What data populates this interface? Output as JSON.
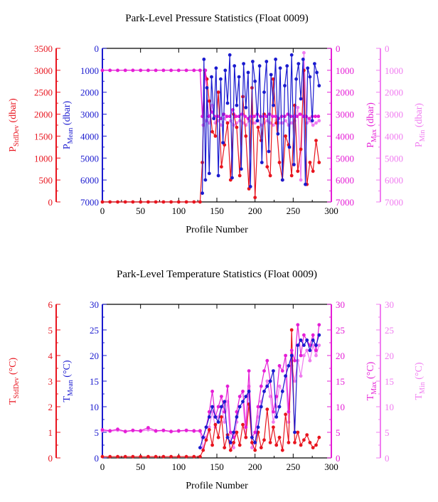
{
  "footer_code": "",
  "colors": {
    "std": "#e8141e",
    "mean": "#1a1acf",
    "max": "#e51ed6",
    "min": "#f07cf0",
    "axis": "#000000"
  },
  "chart_data": [
    {
      "type": "line",
      "title": "Park-Level Pressure Statistics (Float 0009)",
      "xlabel": "Profile Number",
      "xlim": [
        0,
        300
      ],
      "xticks": [
        "0",
        "50",
        "100",
        "150",
        "200",
        "250",
        "300"
      ],
      "axes": {
        "std": {
          "label_main": "P",
          "label_sub": "StdDev",
          "label_unit": " (dbar)",
          "lim": [
            0,
            3500
          ],
          "reversed": false,
          "ticks": [
            "0",
            "500",
            "1000",
            "1500",
            "2000",
            "2500",
            "3000",
            "3500"
          ]
        },
        "mean": {
          "label_main": "P",
          "label_sub": "Mean",
          "label_unit": " (dbar)",
          "lim": [
            0,
            7000
          ],
          "reversed": true,
          "ticks": [
            "0",
            "1000",
            "2000",
            "3000",
            "4000",
            "5000",
            "6000",
            "7000"
          ]
        },
        "max": {
          "label_main": "P",
          "label_sub": "Max",
          "label_unit": " (dbar)",
          "lim": [
            0,
            7000
          ],
          "reversed": true,
          "ticks": [
            "0",
            "1000",
            "2000",
            "3000",
            "4000",
            "5000",
            "6000",
            "7000"
          ]
        },
        "min": {
          "label_main": "P",
          "label_sub": "Min",
          "label_unit": " (dbar)",
          "lim": [
            0,
            7000
          ],
          "reversed": true,
          "ticks": [
            "0",
            "1000",
            "2000",
            "3000",
            "4000",
            "5000",
            "6000",
            "7000"
          ]
        }
      },
      "series": [
        {
          "axis": "std",
          "color_key": "std",
          "x": [
            0,
            10,
            20,
            30,
            40,
            50,
            60,
            70,
            80,
            90,
            100,
            110,
            120,
            128,
            131,
            134,
            137,
            140,
            144,
            148,
            152,
            156,
            160,
            164,
            168,
            172,
            176,
            180,
            184,
            188,
            192,
            196,
            200,
            204,
            208,
            212,
            216,
            220,
            224,
            228,
            232,
            236,
            240,
            244,
            248,
            252,
            256,
            260,
            264,
            268,
            272,
            276,
            280,
            284
          ],
          "y": [
            0,
            0,
            0,
            0,
            0,
            0,
            0,
            0,
            0,
            0,
            0,
            0,
            0,
            0,
            900,
            3000,
            2800,
            2300,
            1600,
            1500,
            2500,
            800,
            1300,
            1800,
            500,
            2000,
            1700,
            600,
            2400,
            1500,
            300,
            2600,
            100,
            1700,
            1400,
            2000,
            800,
            600,
            2800,
            1800,
            900,
            500,
            1500,
            1300,
            600,
            2200,
            700,
            1200,
            3000,
            400,
            900,
            700,
            1400,
            900
          ]
        },
        {
          "axis": "mean",
          "color_key": "mean",
          "x": [
            131,
            133,
            135,
            137,
            140,
            143,
            146,
            149,
            152,
            155,
            158,
            161,
            164,
            167,
            170,
            173,
            176,
            179,
            182,
            185,
            188,
            191,
            194,
            197,
            200,
            203,
            206,
            209,
            212,
            215,
            218,
            221,
            224,
            227,
            230,
            233,
            236,
            239,
            242,
            245,
            248,
            251,
            254,
            257,
            260,
            263,
            266,
            269,
            272,
            275,
            278,
            281,
            284
          ],
          "y": [
            6600,
            500,
            6000,
            1800,
            5700,
            1300,
            3200,
            900,
            5800,
            1400,
            4300,
            1000,
            2500,
            300,
            5900,
            800,
            2600,
            1300,
            5500,
            700,
            2700,
            1100,
            6300,
            600,
            1500,
            3300,
            800,
            5200,
            2000,
            600,
            4700,
            1200,
            2600,
            500,
            3900,
            900,
            6000,
            1700,
            800,
            4500,
            300,
            5300,
            1400,
            700,
            2300,
            500,
            6200,
            900,
            1300,
            3300,
            700,
            1100,
            1700
          ]
        },
        {
          "axis": "max",
          "color_key": "max",
          "x": [
            0,
            10,
            20,
            30,
            40,
            50,
            60,
            70,
            80,
            90,
            100,
            110,
            120,
            128,
            131,
            135,
            139,
            143,
            147,
            151,
            155,
            159,
            163,
            167,
            171,
            175,
            179,
            183,
            187,
            191,
            195,
            199,
            203,
            207,
            211,
            215,
            219,
            223,
            227,
            231,
            235,
            239,
            243,
            247,
            251,
            255,
            259,
            263,
            267,
            271,
            275,
            279,
            283
          ],
          "y": [
            1000,
            1000,
            1000,
            1000,
            1000,
            1000,
            1000,
            1000,
            1000,
            1000,
            1000,
            1000,
            1000,
            1000,
            3100,
            1000,
            3100,
            2900,
            3100,
            3100,
            3200,
            3000,
            3100,
            3100,
            2800,
            3100,
            3100,
            3000,
            3100,
            3200,
            3100,
            3100,
            3000,
            3100,
            3100,
            3100,
            3000,
            3100,
            3100,
            3200,
            3100,
            3100,
            3000,
            3100,
            3100,
            3100,
            3000,
            3100,
            3100,
            3200,
            3100,
            3100,
            3100
          ]
        },
        {
          "axis": "min",
          "color_key": "min",
          "x": [
            0,
            10,
            20,
            30,
            40,
            50,
            60,
            70,
            80,
            90,
            100,
            110,
            120,
            128,
            132,
            136,
            140,
            144,
            148,
            152,
            156,
            160,
            164,
            168,
            172,
            176,
            180,
            184,
            188,
            192,
            196,
            200,
            204,
            208,
            212,
            216,
            220,
            224,
            228,
            232,
            236,
            240,
            244,
            248,
            252,
            256,
            260,
            264,
            268,
            272,
            276,
            280,
            284
          ],
          "y": [
            1000,
            1000,
            1000,
            1000,
            1000,
            1000,
            1000,
            1000,
            1000,
            1000,
            1000,
            1000,
            1000,
            1000,
            3500,
            3300,
            3400,
            2600,
            3400,
            3300,
            3500,
            3200,
            3400,
            3300,
            3500,
            3400,
            3300,
            3400,
            3500,
            3300,
            3400,
            3400,
            3300,
            3500,
            3400,
            3300,
            3400,
            3500,
            3300,
            3400,
            3400,
            3300,
            3500,
            3400,
            3300,
            2700,
            6000,
            200,
            3400,
            3300,
            3500,
            3400,
            3300
          ]
        }
      ]
    },
    {
      "type": "line",
      "title": "Park-Level Temperature Statistics (Float 0009)",
      "xlabel": "Profile Number",
      "xlim": [
        0,
        300
      ],
      "xticks": [
        "0",
        "50",
        "100",
        "150",
        "200",
        "250",
        "300"
      ],
      "axes": {
        "std": {
          "label_main": "T",
          "label_sub": "StdDev",
          "label_unit": " (°C)",
          "lim": [
            0,
            6
          ],
          "reversed": false,
          "ticks": [
            "0",
            "1",
            "2",
            "3",
            "4",
            "5",
            "6"
          ]
        },
        "mean": {
          "label_main": "T",
          "label_sub": "Mean",
          "label_unit": " (°C)",
          "lim": [
            0,
            30
          ],
          "reversed": false,
          "ticks": [
            "0",
            "5",
            "10",
            "15",
            "20",
            "25",
            "30"
          ]
        },
        "max": {
          "label_main": "T",
          "label_sub": "Max",
          "label_unit": " (°C)",
          "lim": [
            0,
            30
          ],
          "reversed": false,
          "ticks": [
            "0",
            "5",
            "10",
            "15",
            "20",
            "25",
            "30"
          ]
        },
        "min": {
          "label_main": "T",
          "label_sub": "Min",
          "label_unit": " (°C)",
          "lim": [
            0,
            30
          ],
          "reversed": false,
          "ticks": [
            "0",
            "5",
            "10",
            "15",
            "20",
            "25",
            "30"
          ]
        }
      },
      "series": [
        {
          "axis": "std",
          "color_key": "std",
          "x": [
            0,
            10,
            20,
            30,
            40,
            50,
            60,
            70,
            80,
            90,
            100,
            110,
            120,
            128,
            132,
            136,
            140,
            144,
            148,
            152,
            156,
            160,
            164,
            168,
            172,
            176,
            180,
            184,
            188,
            192,
            196,
            200,
            204,
            208,
            212,
            216,
            220,
            224,
            228,
            232,
            236,
            240,
            244,
            248,
            252,
            256,
            260,
            264,
            268,
            272,
            276,
            280,
            284
          ],
          "y": [
            0.05,
            0.05,
            0.05,
            0.05,
            0.05,
            0.05,
            0.05,
            0.05,
            0.05,
            0.05,
            0.05,
            0.05,
            0.05,
            0.05,
            0.3,
            0.7,
            1.1,
            0.5,
            1.3,
            0.8,
            1.6,
            0.4,
            0.9,
            0.3,
            0.6,
            1.0,
            0.5,
            1.3,
            0.8,
            2.1,
            0.6,
            0.3,
            1.0,
            0.4,
            0.7,
            1.9,
            0.6,
            1.2,
            0.5,
            0.8,
            0.3,
            1.7,
            0.6,
            5.0,
            0.6,
            1.0,
            0.5,
            0.7,
            0.9,
            0.6,
            0.4,
            0.5,
            0.8
          ]
        },
        {
          "axis": "mean",
          "color_key": "mean",
          "x": [
            128,
            132,
            136,
            140,
            144,
            148,
            152,
            156,
            160,
            164,
            168,
            172,
            176,
            180,
            184,
            188,
            192,
            196,
            200,
            204,
            208,
            212,
            216,
            220,
            224,
            228,
            232,
            236,
            240,
            244,
            248,
            252,
            256,
            260,
            264,
            268,
            272,
            276,
            280,
            284
          ],
          "y": [
            2,
            4,
            6,
            8,
            10,
            8,
            7,
            10,
            11,
            4,
            3,
            5,
            8,
            10,
            11,
            12,
            13,
            4,
            3,
            6,
            10,
            13,
            14,
            15,
            17,
            8,
            10,
            13,
            16,
            18,
            20,
            5,
            22,
            23,
            22,
            23,
            21,
            23,
            22,
            24
          ]
        },
        {
          "axis": "max",
          "color_key": "max",
          "x": [
            0,
            10,
            20,
            30,
            40,
            50,
            60,
            70,
            80,
            90,
            100,
            110,
            120,
            128,
            132,
            136,
            140,
            144,
            148,
            152,
            156,
            160,
            164,
            168,
            172,
            176,
            180,
            184,
            188,
            192,
            196,
            200,
            204,
            208,
            212,
            216,
            220,
            224,
            228,
            232,
            236,
            240,
            244,
            248,
            252,
            256,
            260,
            264,
            268,
            272,
            276,
            280,
            284
          ],
          "y": [
            5.5,
            5.3,
            5.6,
            5.2,
            5.4,
            5.3,
            5.9,
            5.3,
            5.4,
            5.2,
            5.3,
            5.4,
            5.3,
            5.3,
            4,
            6,
            9,
            13,
            8,
            10,
            12,
            9,
            14,
            5,
            4,
            9,
            12,
            13,
            6,
            17,
            4,
            5,
            10,
            14,
            17,
            19,
            15,
            9,
            12,
            18,
            17,
            20,
            9,
            21,
            19,
            26,
            20,
            24,
            23,
            22,
            24,
            21,
            26
          ]
        },
        {
          "axis": "min",
          "color_key": "min",
          "x": [
            0,
            10,
            20,
            30,
            40,
            50,
            60,
            70,
            80,
            90,
            100,
            110,
            120,
            128,
            132,
            136,
            140,
            144,
            148,
            152,
            156,
            160,
            164,
            168,
            172,
            176,
            180,
            184,
            188,
            192,
            196,
            200,
            204,
            208,
            212,
            216,
            220,
            224,
            228,
            232,
            236,
            240,
            244,
            248,
            252,
            256,
            260,
            264,
            268,
            272,
            276,
            280,
            284
          ],
          "y": [
            5.3,
            5.2,
            5.4,
            5.1,
            5.3,
            5.2,
            5.5,
            5.2,
            5.3,
            5.1,
            5.2,
            5.3,
            5.2,
            5.2,
            2,
            4,
            6,
            9,
            6,
            8,
            10,
            7,
            11,
            3,
            2,
            7,
            10,
            11,
            4,
            14,
            2,
            3,
            8,
            11,
            13,
            15,
            12,
            7,
            10,
            14,
            13,
            16,
            7,
            18,
            15,
            19,
            16,
            20,
            21,
            19,
            22,
            20,
            22
          ]
        }
      ]
    }
  ]
}
